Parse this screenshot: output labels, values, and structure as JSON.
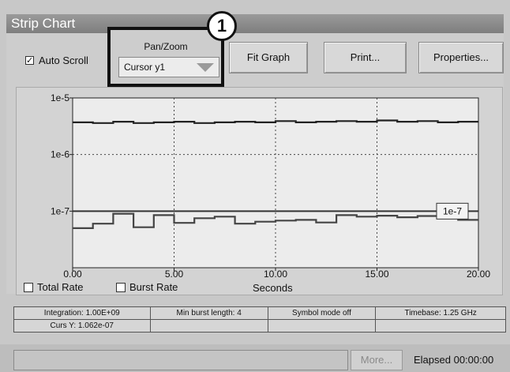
{
  "window": {
    "title": "Strip Chart"
  },
  "toolbar": {
    "auto_scroll_label": "Auto Scroll",
    "auto_scroll_checked": true,
    "pan_zoom_label": "Pan/Zoom",
    "pan_zoom_value": "Cursor y1",
    "fit_graph_label": "Fit Graph",
    "print_label": "Print...",
    "properties_label": "Properties..."
  },
  "callout": {
    "label": "1"
  },
  "chart_data": {
    "type": "line",
    "xlabel": "Seconds",
    "y_scale": "log",
    "xlim": [
      0,
      20
    ],
    "ylim": [
      1e-08,
      1e-05
    ],
    "x_ticks": [
      "0.00",
      "5.00",
      "10.00",
      "15.00",
      "20.00"
    ],
    "x_tick_values": [
      0,
      5,
      10,
      15,
      20
    ],
    "y_ticks": [
      "1e-5",
      "1e-6",
      "1e-7"
    ],
    "y_tick_values": [
      1e-05,
      1e-06,
      1e-07
    ],
    "grid": true,
    "cursor": {
      "y": 1e-07,
      "label": "1e-7"
    },
    "series": [
      {
        "color": "#222222",
        "x": [
          0,
          1,
          2,
          3,
          4,
          5,
          6,
          7,
          8,
          9,
          10,
          11,
          12,
          13,
          14,
          15,
          16,
          17,
          18,
          19,
          20
        ],
        "values": [
          3.7e-06,
          3.6e-06,
          3.8e-06,
          3.6e-06,
          3.7e-06,
          3.8e-06,
          3.6e-06,
          3.7e-06,
          3.8e-06,
          3.7e-06,
          3.9e-06,
          3.7e-06,
          3.8e-06,
          3.9e-06,
          3.8e-06,
          4e-06,
          3.8e-06,
          3.9e-06,
          3.7e-06,
          3.8e-06,
          3.8e-06
        ]
      },
      {
        "color": "#444444",
        "x": [
          0,
          1,
          2,
          3,
          4,
          5,
          6,
          7,
          8,
          9,
          10,
          11,
          12,
          13,
          14,
          15,
          16,
          17,
          18,
          19,
          20
        ],
        "values": [
          5e-08,
          6e-08,
          9e-08,
          5.2e-08,
          8.5e-08,
          6.2e-08,
          7.5e-08,
          8e-08,
          6e-08,
          6.5e-08,
          6.8e-08,
          7e-08,
          6.3e-08,
          8.5e-08,
          8e-08,
          8.3e-08,
          7.8e-08,
          8.2e-08,
          7.5e-08,
          7e-08,
          6.8e-08
        ]
      }
    ],
    "legend": [
      {
        "label": "Total Rate"
      },
      {
        "label": "Burst Rate"
      }
    ]
  },
  "status": {
    "integration": "Integration: 1.00E+09",
    "min_burst": "Min burst length: 4",
    "symbol_mode": "Symbol mode off",
    "timebase": "Timebase: 1.25 GHz",
    "curs_y": "Curs Y: 1.062e-07"
  },
  "bottom": {
    "more_label": "More...",
    "elapsed": "Elapsed 00:00:00"
  }
}
